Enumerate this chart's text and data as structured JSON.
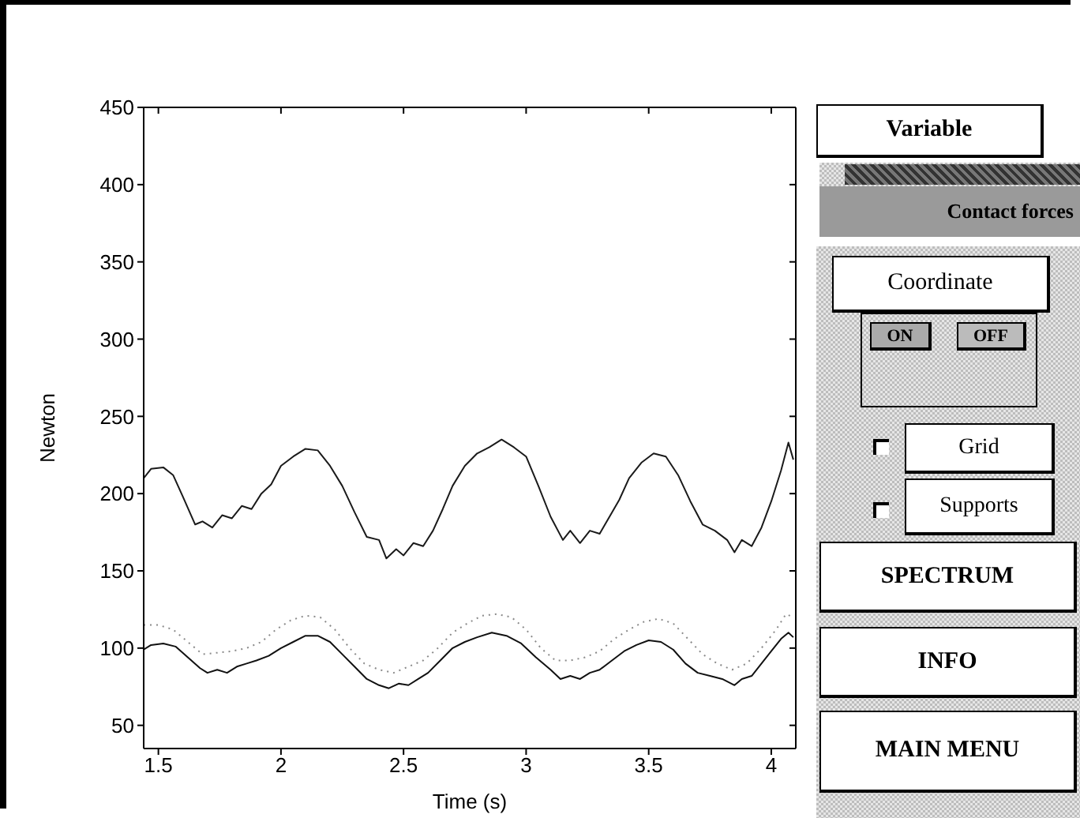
{
  "chart_data": {
    "type": "line",
    "xlabel": "Time (s)",
    "ylabel": "Newton",
    "xlim": [
      1.44,
      4.1
    ],
    "xticks": [
      1.5,
      2,
      2.5,
      3,
      3.5,
      4
    ],
    "ylim": [
      35,
      450
    ],
    "yticks": [
      50,
      100,
      150,
      200,
      250,
      300,
      350,
      400,
      450
    ],
    "marker": "none",
    "series": [
      {
        "color": "#1a1a1a",
        "line_style": "solid",
        "x": [
          1.44,
          1.47,
          1.52,
          1.56,
          1.6,
          1.65,
          1.68,
          1.72,
          1.76,
          1.8,
          1.84,
          1.88,
          1.92,
          1.96,
          2.0,
          2.05,
          2.1,
          2.15,
          2.2,
          2.25,
          2.3,
          2.35,
          2.4,
          2.43,
          2.47,
          2.5,
          2.54,
          2.58,
          2.62,
          2.66,
          2.7,
          2.75,
          2.8,
          2.85,
          2.9,
          2.95,
          3.0,
          3.05,
          3.1,
          3.15,
          3.18,
          3.22,
          3.26,
          3.3,
          3.34,
          3.38,
          3.42,
          3.47,
          3.52,
          3.57,
          3.62,
          3.67,
          3.72,
          3.77,
          3.82,
          3.85,
          3.88,
          3.92,
          3.96,
          4.0,
          4.04,
          4.07,
          4.09
        ],
        "values": [
          210,
          216,
          217,
          212,
          198,
          180,
          182,
          178,
          186,
          184,
          192,
          190,
          200,
          206,
          218,
          224,
          229,
          228,
          218,
          205,
          188,
          172,
          170,
          158,
          164,
          160,
          168,
          166,
          176,
          190,
          205,
          218,
          226,
          230,
          235,
          230,
          224,
          205,
          185,
          170,
          176,
          168,
          176,
          174,
          185,
          196,
          210,
          220,
          226,
          224,
          212,
          195,
          180,
          176,
          170,
          162,
          170,
          166,
          178,
          195,
          215,
          233,
          222
        ]
      },
      {
        "color": "#8a8a8a",
        "line_style": "dotted",
        "x": [
          1.44,
          1.5,
          1.56,
          1.62,
          1.68,
          1.74,
          1.8,
          1.86,
          1.92,
          1.98,
          2.04,
          2.1,
          2.16,
          2.22,
          2.28,
          2.34,
          2.4,
          2.46,
          2.52,
          2.58,
          2.64,
          2.7,
          2.76,
          2.82,
          2.88,
          2.94,
          3.0,
          3.06,
          3.12,
          3.18,
          3.24,
          3.3,
          3.36,
          3.42,
          3.48,
          3.54,
          3.6,
          3.66,
          3.72,
          3.78,
          3.84,
          3.9,
          3.96,
          4.02,
          4.06,
          4.09
        ],
        "values": [
          115,
          115,
          112,
          104,
          96,
          97,
          98,
          100,
          104,
          112,
          118,
          121,
          120,
          112,
          100,
          90,
          86,
          84,
          88,
          92,
          100,
          110,
          116,
          121,
          122,
          120,
          112,
          100,
          92,
          92,
          94,
          98,
          106,
          112,
          117,
          119,
          116,
          106,
          96,
          90,
          86,
          90,
          100,
          112,
          122,
          120
        ]
      },
      {
        "color": "#111111",
        "line_style": "solid",
        "x": [
          1.44,
          1.47,
          1.52,
          1.57,
          1.62,
          1.67,
          1.7,
          1.74,
          1.78,
          1.82,
          1.86,
          1.9,
          1.95,
          2.0,
          2.05,
          2.1,
          2.15,
          2.2,
          2.25,
          2.3,
          2.35,
          2.4,
          2.44,
          2.48,
          2.52,
          2.56,
          2.6,
          2.65,
          2.7,
          2.75,
          2.8,
          2.86,
          2.92,
          2.98,
          3.04,
          3.1,
          3.14,
          3.18,
          3.22,
          3.26,
          3.3,
          3.35,
          3.4,
          3.45,
          3.5,
          3.55,
          3.6,
          3.65,
          3.7,
          3.75,
          3.8,
          3.85,
          3.88,
          3.92,
          3.96,
          4.0,
          4.04,
          4.07,
          4.09
        ],
        "values": [
          99,
          102,
          103,
          101,
          94,
          87,
          84,
          86,
          84,
          88,
          90,
          92,
          95,
          100,
          104,
          108,
          108,
          104,
          96,
          88,
          80,
          76,
          74,
          77,
          76,
          80,
          84,
          92,
          100,
          104,
          107,
          110,
          108,
          103,
          94,
          86,
          80,
          82,
          80,
          84,
          86,
          92,
          98,
          102,
          105,
          104,
          99,
          90,
          84,
          82,
          80,
          76,
          80,
          82,
          90,
          98,
          106,
          110,
          107
        ]
      }
    ],
    "annotations": [
      "Variable",
      "Contact forces",
      "Coordinate",
      "ON",
      "OFF",
      "Grid",
      "Supports",
      "SPECTRUM",
      "INFO",
      "MAIN MENU"
    ]
  }
}
